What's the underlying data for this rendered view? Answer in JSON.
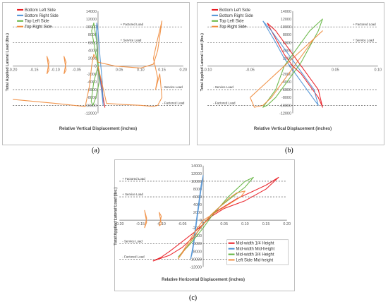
{
  "captions": [
    "(a)",
    "(b)",
    "(c)"
  ],
  "chart_data": [
    {
      "type": "line",
      "title": "",
      "xlabel": "Relative Vertical Displacement (inches)",
      "ylabel": "Total Applied Lateral Load (lbs.)",
      "xlim": [
        -0.2,
        0.2
      ],
      "ylim": [
        -12000,
        14000
      ],
      "xticks": [
        "-0.20",
        "-0.15",
        "-0.10",
        "-0.05",
        "0",
        "0.05",
        "0.10",
        "0.15",
        "0.20"
      ],
      "xtick_values": [
        -0.2,
        -0.15,
        -0.1,
        -0.05,
        0,
        0.05,
        0.1,
        0.15,
        0.2
      ],
      "yticks": [
        "-12000",
        "-10000",
        "-8000",
        "-6000",
        "-4000",
        "-2000",
        "0",
        "2000",
        "4000",
        "6000",
        "8000",
        "10000",
        "12000",
        "14000"
      ],
      "ytick_values": [
        -12000,
        -10000,
        -8000,
        -6000,
        -4000,
        -2000,
        0,
        2000,
        4000,
        6000,
        8000,
        10000,
        12000,
        14000
      ],
      "reference_lines": [
        {
          "label": "+ Factored Load",
          "y": 10000
        },
        {
          "label": "+ Service Load",
          "y": 6000
        },
        {
          "label": "- Service Load",
          "y": -6000
        },
        {
          "label": "- Factored Load",
          "y": -10000
        }
      ],
      "legend_position": "top-left",
      "series": [
        {
          "name": "Bottom Left Side",
          "color": "#e8141c",
          "x": [
            0.0,
            0.003,
            0.006,
            0.009,
            0.012,
            0.015,
            0.016,
            0.012,
            0.008,
            0.004,
            0.0
          ],
          "y": [
            0,
            -2000,
            -4000,
            -6000,
            -8000,
            -10000,
            -10500,
            -8000,
            -5000,
            -2000,
            0
          ]
        },
        {
          "name": "Bottom Right Side",
          "color": "#4a8fd4",
          "x": [
            0.0,
            -0.002,
            -0.004,
            -0.003,
            0.0,
            0.005,
            0.01,
            0.012,
            0.008,
            0.003,
            0.0
          ],
          "y": [
            0,
            4000,
            8000,
            11000,
            9000,
            2000,
            -4000,
            -10000,
            -6000,
            -2000,
            0
          ]
        },
        {
          "name": "Top Left Side",
          "color": "#5fb33c",
          "x": [
            0.0,
            -0.005,
            -0.01,
            -0.015,
            -0.01,
            -0.003,
            0.0,
            0.003,
            -0.005,
            -0.012,
            -0.016,
            -0.01,
            0.0
          ],
          "y": [
            0,
            3000,
            6000,
            9000,
            11000,
            6000,
            1000,
            -4000,
            -8000,
            -10000,
            -9000,
            -4000,
            0
          ]
        },
        {
          "name": "Top Right Side",
          "color": "#f08a3a",
          "x": [
            -0.2,
            -0.1,
            -0.03,
            -0.02,
            -0.015,
            -0.01,
            0.0,
            0.04,
            0.1,
            0.13,
            0.14,
            0.15,
            0.14,
            0.13,
            0.14,
            0.135,
            0.145,
            0.15,
            0.14,
            0.13,
            0.1,
            0.06,
            0.02,
            0.0
          ],
          "y": [
            -8500,
            -9500,
            -10300,
            -5000,
            0,
            3000,
            1000,
            0,
            -500,
            500,
            4000,
            11500,
            7000,
            2000,
            -3000,
            -6000,
            -2000,
            -8000,
            -10000,
            -10300,
            -10000,
            -9800,
            -9500,
            0
          ]
        },
        {
          "name": "",
          "color": "#f08a3a",
          "x": [
            -0.12,
            -0.115,
            -0.12,
            -0.115,
            -0.12
          ],
          "y": [
            -2000,
            1000,
            2500,
            -1000,
            -2000
          ]
        },
        {
          "name": "",
          "color": "#f08a3a",
          "x": [
            -0.08,
            -0.075,
            -0.08,
            -0.075,
            -0.08
          ],
          "y": [
            -2000,
            1000,
            2500,
            -1000,
            -2000
          ]
        }
      ]
    },
    {
      "type": "line",
      "title": "",
      "xlabel": "Relative Vertical Displacement (inches)",
      "ylabel": "Total Applied Lateral Load (lbs.)",
      "xlim": [
        -0.1,
        0.1
      ],
      "ylim": [
        -12000,
        14000
      ],
      "xticks": [
        "-0.10",
        "-0.05",
        "0",
        "0.05",
        "0.10"
      ],
      "xtick_values": [
        -0.1,
        -0.05,
        0,
        0.05,
        0.1
      ],
      "yticks": [
        "-12000",
        "-10000",
        "-8000",
        "-6000",
        "-4000",
        "-2000",
        "0",
        "2000",
        "4000",
        "6000",
        "8000",
        "10000",
        "12000",
        "14000"
      ],
      "ytick_values": [
        -12000,
        -10000,
        -8000,
        -6000,
        -4000,
        -2000,
        0,
        2000,
        4000,
        6000,
        8000,
        10000,
        12000,
        14000
      ],
      "reference_lines": [
        {
          "label": "+ Factored Load",
          "y": 10000
        },
        {
          "label": "+ Service Load",
          "y": 6000
        },
        {
          "label": "- Service Load",
          "y": -6000
        },
        {
          "label": "- Factored Load",
          "y": -10000
        }
      ],
      "legend_position": "top-left",
      "series": [
        {
          "name": "Bottom Left Side",
          "color": "#e8141c",
          "x": [
            -0.03,
            -0.02,
            -0.01,
            0.0,
            0.01,
            0.02,
            0.03,
            0.035,
            0.03,
            0.02,
            0.01,
            0.0,
            -0.01,
            -0.02,
            -0.03
          ],
          "y": [
            11000,
            9000,
            6000,
            3000,
            0,
            -3000,
            -6000,
            -10500,
            -8000,
            -5000,
            -2000,
            0,
            3000,
            7000,
            11000
          ]
        },
        {
          "name": "Bottom Right Side",
          "color": "#4a8fd4",
          "x": [
            -0.035,
            -0.025,
            -0.015,
            -0.005,
            0.005,
            0.015,
            0.025,
            0.03,
            0.02,
            0.01,
            0.0,
            -0.01,
            -0.02,
            -0.035
          ],
          "y": [
            11500,
            9000,
            6000,
            3000,
            0,
            -3000,
            -6000,
            -10000,
            -7000,
            -4000,
            -1000,
            2000,
            6000,
            11500
          ]
        },
        {
          "name": "Top Left Side",
          "color": "#5fb33c",
          "x": [
            -0.01,
            0.0,
            0.01,
            0.02,
            0.03,
            0.035,
            0.03,
            0.02,
            0.01,
            0.0,
            -0.01,
            -0.02,
            -0.03,
            -0.035,
            -0.02,
            -0.01
          ],
          "y": [
            0,
            3000,
            6000,
            9000,
            11000,
            12000,
            9000,
            5000,
            1000,
            -2000,
            -5000,
            -8000,
            -10000,
            -10500,
            -6000,
            0
          ]
        },
        {
          "name": "Top Right Side",
          "color": "#f08a3a",
          "x": [
            -0.05,
            -0.04,
            -0.03,
            -0.02,
            -0.01,
            0.0,
            0.01,
            0.02,
            0.03,
            0.035,
            0.025,
            0.015,
            0.005,
            -0.005,
            -0.015,
            -0.025,
            -0.035,
            -0.045,
            -0.05
          ],
          "y": [
            -8000,
            -6000,
            -4000,
            -2000,
            0,
            2000,
            4000,
            6000,
            8000,
            9000,
            7000,
            4000,
            1000,
            -2000,
            -5000,
            -8000,
            -10000,
            -10500,
            -8000
          ]
        }
      ]
    },
    {
      "type": "line",
      "title": "",
      "xlabel": "Relative Horizontal Displacement (inches)",
      "ylabel": "Total Applied Lateral Load (lbs.)",
      "xlim": [
        -0.2,
        0.2
      ],
      "ylim": [
        -12000,
        14000
      ],
      "xticks": [
        "-0.20",
        "-0.15",
        "-0.10",
        "-0.05",
        "0",
        "0.05",
        "0.10",
        "0.15",
        "0.20"
      ],
      "xtick_values": [
        -0.2,
        -0.15,
        -0.1,
        -0.05,
        0,
        0.05,
        0.1,
        0.15,
        0.2
      ],
      "yticks": [
        "-12000",
        "-10000",
        "-8000",
        "-6000",
        "-4000",
        "-2000",
        "0",
        "2000",
        "4000",
        "6000",
        "8000",
        "10000",
        "12000",
        "14000"
      ],
      "ytick_values": [
        -12000,
        -10000,
        -8000,
        -6000,
        -4000,
        -2000,
        0,
        2000,
        4000,
        6000,
        8000,
        10000,
        12000,
        14000
      ],
      "reference_lines": [
        {
          "label": "+ Factored Load",
          "y": 10000
        },
        {
          "label": "+ Service Load",
          "y": 6000
        },
        {
          "label": "- Service Load",
          "y": -6000
        },
        {
          "label": "- Factored Load",
          "y": -10000
        }
      ],
      "legend_position": "bottom-right",
      "series": [
        {
          "name": "Mid-width 1/4 Height",
          "color": "#e8141c",
          "x": [
            -0.12,
            -0.08,
            -0.05,
            -0.02,
            0.0,
            0.02,
            0.05,
            0.08,
            0.12,
            0.15,
            0.18,
            0.15,
            0.1,
            0.05,
            0.02,
            0.0,
            -0.02,
            -0.05,
            -0.08,
            -0.1,
            -0.12
          ],
          "y": [
            -10500,
            -9000,
            -7000,
            -4000,
            -1000,
            1500,
            3500,
            5500,
            7500,
            9000,
            11000,
            8000,
            5000,
            3000,
            1000,
            -1000,
            -3000,
            -5500,
            -8000,
            -9500,
            -10500
          ]
        },
        {
          "name": "Mid-width Mid-height",
          "color": "#4a8fd4",
          "x": [
            -0.03,
            -0.025,
            -0.02,
            -0.015,
            -0.01,
            -0.005,
            0.0,
            -0.005,
            -0.01,
            -0.015,
            -0.02,
            -0.025,
            -0.03
          ],
          "y": [
            -10000,
            -7000,
            -3000,
            1000,
            5000,
            9000,
            11500,
            8000,
            4000,
            0,
            -4000,
            -8000,
            -10000
          ]
        },
        {
          "name": "Mid-width 3/4 Height",
          "color": "#5fb33c",
          "x": [
            -0.06,
            -0.03,
            0.0,
            0.02,
            0.04,
            0.06,
            0.08,
            0.1,
            0.12,
            0.1,
            0.07,
            0.04,
            0.02,
            0.0,
            -0.02,
            -0.04,
            -0.06
          ],
          "y": [
            -9500,
            -6000,
            -2000,
            1000,
            3500,
            6000,
            8000,
            10000,
            11000,
            8500,
            6000,
            3500,
            1500,
            -1000,
            -4000,
            -7000,
            -9500
          ]
        },
        {
          "name": "Left Side Mid-height",
          "color": "#f08a3a",
          "x": [
            -0.06,
            -0.04,
            -0.02,
            0.0,
            0.02,
            0.04,
            0.06,
            0.08,
            0.1,
            0.09,
            0.06,
            0.03,
            0.0,
            -0.02,
            -0.04,
            -0.06
          ],
          "y": [
            -10000,
            -7000,
            -4000,
            -1000,
            1500,
            3500,
            5500,
            7000,
            7500,
            6000,
            4000,
            2000,
            0,
            -3000,
            -6500,
            -10000
          ]
        },
        {
          "name": "",
          "color": "#f08a3a",
          "x": [
            -0.14,
            -0.135,
            -0.14,
            -0.135,
            -0.14
          ],
          "y": [
            -2000,
            500,
            2500,
            -500,
            -2000
          ]
        },
        {
          "name": "",
          "color": "#f08a3a",
          "x": [
            -0.105,
            -0.1,
            -0.105,
            -0.1,
            -0.105
          ],
          "y": [
            -1500,
            1000,
            2000,
            -1000,
            -1500
          ]
        }
      ]
    }
  ]
}
